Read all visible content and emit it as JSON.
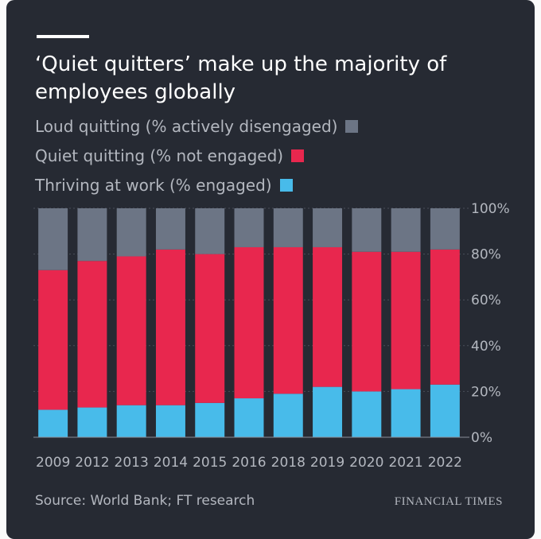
{
  "header": {
    "title": "‘Quiet quitters’ make up the majority of employees globally"
  },
  "legend": [
    {
      "label": "Loud quitting (% actively disengaged)",
      "color": "#6c7585"
    },
    {
      "label": "Quiet quitting (% not engaged)",
      "color": "#e8274e"
    },
    {
      "label": "Thriving at work (% engaged)",
      "color": "#48bbea"
    }
  ],
  "footer": {
    "source": "Source: World Bank; FT research",
    "brand": "FINANCIAL TIMES"
  },
  "chart_data": {
    "type": "bar",
    "stacked": true,
    "categories": [
      "2009",
      "2012",
      "2013",
      "2014",
      "2015",
      "2016",
      "2018",
      "2019",
      "2020",
      "2021",
      "2022"
    ],
    "series": [
      {
        "name": "Thriving at work (% engaged)",
        "color": "#48bbea",
        "values": [
          12,
          13,
          14,
          14,
          15,
          17,
          19,
          22,
          20,
          21,
          23
        ]
      },
      {
        "name": "Quiet quitting (% not engaged)",
        "color": "#e8274e",
        "values": [
          61,
          64,
          65,
          68,
          65,
          66,
          64,
          61,
          61,
          60,
          59
        ]
      },
      {
        "name": "Loud quitting (% actively disengaged)",
        "color": "#6c7585",
        "values": [
          27,
          23,
          21,
          18,
          20,
          17,
          17,
          17,
          19,
          19,
          18
        ]
      }
    ],
    "yticks": [
      "0%",
      "20%",
      "40%",
      "60%",
      "80%",
      "100%"
    ],
    "ylim": [
      0,
      100
    ],
    "grid": true
  }
}
